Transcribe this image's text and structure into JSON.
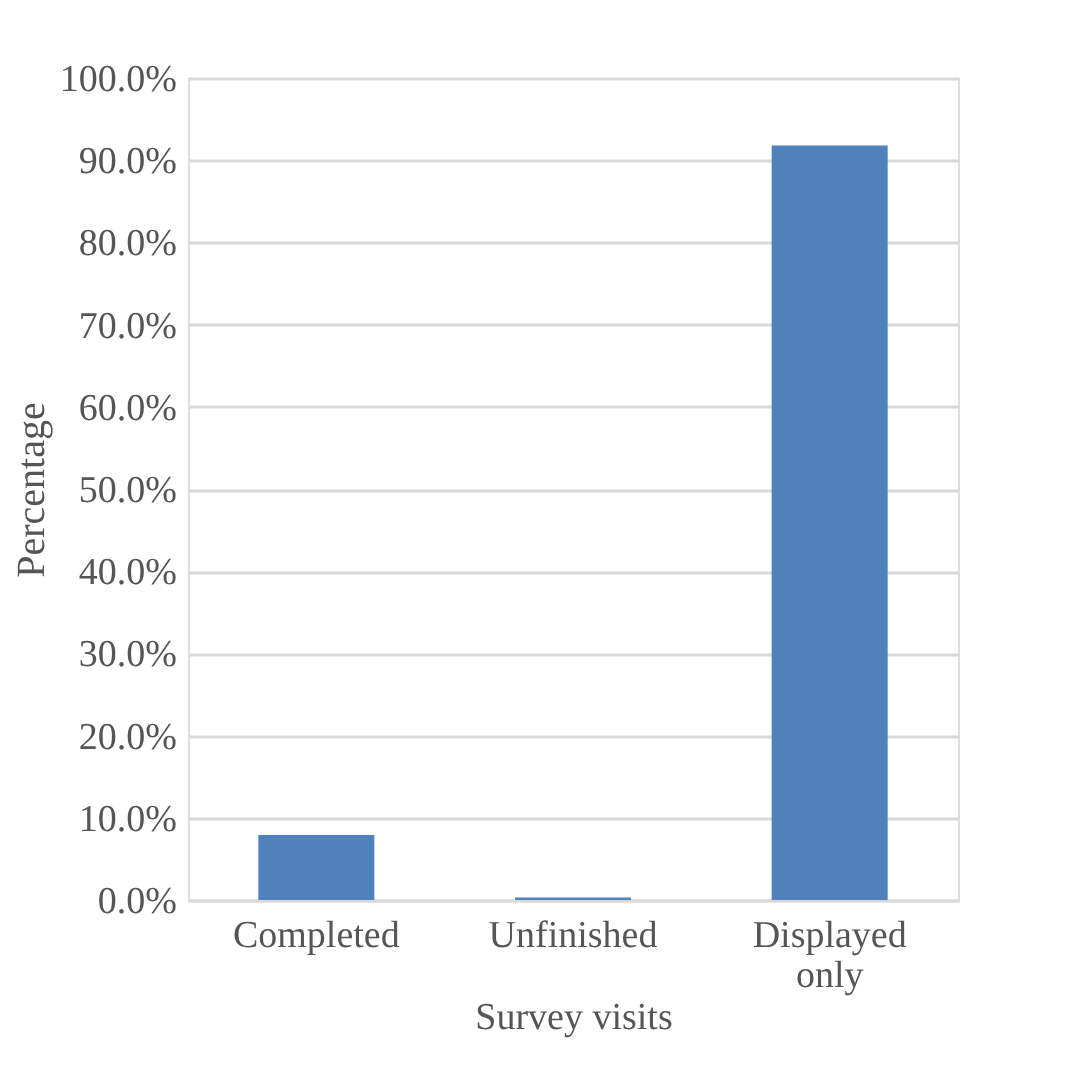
{
  "chart_data": {
    "type": "bar",
    "xlabel": "Survey visits",
    "ylabel": "Percentage",
    "categories": [
      "Completed",
      "Unfinished",
      "Displayed only"
    ],
    "values": [
      7.9,
      0.3,
      91.8
    ],
    "color": "#4f81bd",
    "ylim": [
      0,
      100
    ],
    "yticks": [
      {
        "value": 0,
        "label": "0.0%"
      },
      {
        "value": 10,
        "label": "10.0%"
      },
      {
        "value": 20,
        "label": "20.0%"
      },
      {
        "value": 30,
        "label": "30.0%"
      },
      {
        "value": 40,
        "label": "40.0%"
      },
      {
        "value": 50,
        "label": "50.0%"
      },
      {
        "value": 60,
        "label": "60.0%"
      },
      {
        "value": 70,
        "label": "70.0%"
      },
      {
        "value": 80,
        "label": "80.0%"
      },
      {
        "value": 90,
        "label": "90.0%"
      },
      {
        "value": 100,
        "label": "100.0%"
      }
    ],
    "grid": "y"
  }
}
